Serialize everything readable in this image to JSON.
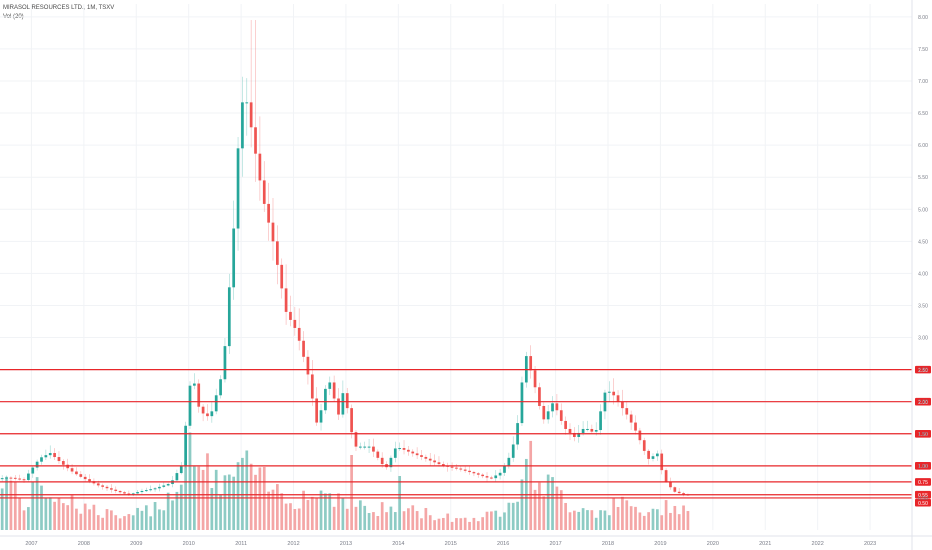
{
  "legend": {
    "symbol_line": "MIRASOL RESOURCES LTD., 1M, TSXV",
    "volume_line": "Vol (20)"
  },
  "colors": {
    "up": "#26a69a",
    "down": "#ef5350",
    "up_volume": "#8dcbc4",
    "down_volume": "#f4a6a6",
    "level_line": "#e8262a",
    "grid": "#f1f3f6",
    "axis_text": "#787b86"
  },
  "chart_data": {
    "type": "candlestick",
    "title": "MIRASOL RESOURCES LTD., 1M, TSXV",
    "interval": "1M",
    "y_axis_position": "right",
    "ylim": [
      0.0,
      8.2
    ],
    "y_ticks": [
      "0.50",
      "1.00",
      "1.50",
      "2.00",
      "2.50",
      "3.00",
      "3.50",
      "4.00",
      "4.50",
      "5.00",
      "5.50",
      "6.00",
      "6.50",
      "7.00",
      "7.50",
      "8.00"
    ],
    "x_ticks": [
      "2007",
      "2008",
      "2009",
      "2010",
      "2011",
      "2012",
      "2013",
      "2014",
      "2015",
      "2016",
      "2017",
      "2018",
      "2019",
      "2020",
      "2021",
      "2022",
      "2023"
    ],
    "x_range": [
      2006.4,
      2023.8
    ],
    "horizontal_levels": [
      {
        "value": 2.5,
        "label": "2.50"
      },
      {
        "value": 2.0,
        "label": "2.00"
      },
      {
        "value": 1.5,
        "label": "1.50"
      },
      {
        "value": 1.0,
        "label": "1.00"
      },
      {
        "value": 0.75,
        "label": "0.75"
      },
      {
        "value": 0.55,
        "label": "0.55"
      },
      {
        "value": 0.5,
        "label": "0.50"
      }
    ],
    "ohlc_anchors": [
      [
        2006.4,
        0.8
      ],
      [
        2006.6,
        0.82
      ],
      [
        2006.9,
        0.78
      ],
      [
        2007.0,
        0.9
      ],
      [
        2007.2,
        1.12
      ],
      [
        2007.4,
        1.2
      ],
      [
        2007.6,
        1.05
      ],
      [
        2007.8,
        0.92
      ],
      [
        2008.0,
        0.82
      ],
      [
        2008.3,
        0.7
      ],
      [
        2008.6,
        0.62
      ],
      [
        2008.9,
        0.55
      ],
      [
        2009.1,
        0.6
      ],
      [
        2009.4,
        0.65
      ],
      [
        2009.7,
        0.73
      ],
      [
        2009.9,
        1.0
      ],
      [
        2010.0,
        1.75
      ],
      [
        2010.1,
        2.5
      ],
      [
        2010.25,
        1.85
      ],
      [
        2010.45,
        1.75
      ],
      [
        2010.7,
        2.5
      ],
      [
        2010.9,
        4.7
      ],
      [
        2011.0,
        6.2
      ],
      [
        2011.1,
        6.9
      ],
      [
        2011.25,
        6.2
      ],
      [
        2011.45,
        5.2
      ],
      [
        2011.65,
        4.5
      ],
      [
        2011.9,
        3.4
      ],
      [
        2012.1,
        3.1
      ],
      [
        2012.3,
        2.5
      ],
      [
        2012.5,
        1.6
      ],
      [
        2012.7,
        2.4
      ],
      [
        2012.9,
        1.8
      ],
      [
        2013.0,
        2.2
      ],
      [
        2013.2,
        1.3
      ],
      [
        2013.5,
        1.3
      ],
      [
        2013.8,
        0.95
      ],
      [
        2014.0,
        1.3
      ],
      [
        2014.3,
        1.2
      ],
      [
        2014.6,
        1.1
      ],
      [
        2014.9,
        1.0
      ],
      [
        2015.2,
        0.95
      ],
      [
        2015.5,
        0.88
      ],
      [
        2015.8,
        0.8
      ],
      [
        2016.0,
        0.9
      ],
      [
        2016.2,
        1.2
      ],
      [
        2016.35,
        1.8
      ],
      [
        2016.45,
        2.8
      ],
      [
        2016.6,
        2.4
      ],
      [
        2016.8,
        1.7
      ],
      [
        2017.0,
        2.0
      ],
      [
        2017.2,
        1.6
      ],
      [
        2017.4,
        1.45
      ],
      [
        2017.6,
        1.6
      ],
      [
        2017.8,
        1.5
      ],
      [
        2018.0,
        2.2
      ],
      [
        2018.15,
        2.1
      ],
      [
        2018.4,
        1.8
      ],
      [
        2018.6,
        1.5
      ],
      [
        2018.8,
        1.1
      ],
      [
        2019.0,
        1.2
      ],
      [
        2019.1,
        0.8
      ],
      [
        2019.3,
        0.6
      ],
      [
        2019.5,
        0.55
      ]
    ],
    "volume_anchors": [
      [
        2006.4,
        0.8
      ],
      [
        2006.8,
        0.35
      ],
      [
        2007.2,
        0.6
      ],
      [
        2007.7,
        0.4
      ],
      [
        2008.2,
        0.25
      ],
      [
        2008.8,
        0.15
      ],
      [
        2009.4,
        0.35
      ],
      [
        2009.9,
        0.75
      ],
      [
        2010.1,
        0.95
      ],
      [
        2010.5,
        0.6
      ],
      [
        2011.0,
        0.85
      ],
      [
        2011.5,
        0.55
      ],
      [
        2012.0,
        0.45
      ],
      [
        2012.5,
        0.5
      ],
      [
        2013.0,
        0.45
      ],
      [
        2013.4,
        0.25
      ],
      [
        2014.0,
        0.3
      ],
      [
        2014.6,
        0.2
      ],
      [
        2015.2,
        0.15
      ],
      [
        2015.8,
        0.2
      ],
      [
        2016.2,
        0.55
      ],
      [
        2016.4,
        0.95
      ],
      [
        2016.8,
        0.6
      ],
      [
        2017.2,
        0.35
      ],
      [
        2017.8,
        0.25
      ],
      [
        2018.2,
        0.35
      ],
      [
        2018.8,
        0.2
      ],
      [
        2019.2,
        0.4
      ],
      [
        2019.6,
        0.2
      ]
    ],
    "volume_spikes": [
      {
        "x": 2013.05,
        "level": 1.0
      },
      {
        "x": 2009.95,
        "level": 1.3
      },
      {
        "x": 2014.0,
        "level": 0.72
      }
    ],
    "max_high": {
      "x": 2011.15,
      "value": 7.95
    }
  }
}
